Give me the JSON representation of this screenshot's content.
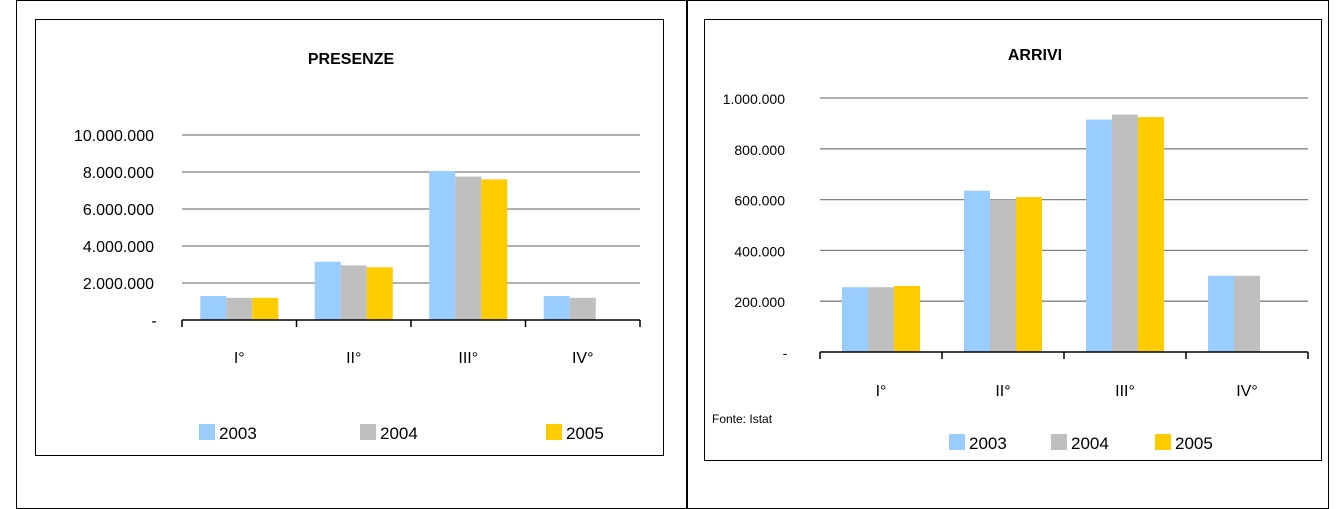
{
  "colors": {
    "y2003": "#99ccff",
    "y2004": "#bfbfbf",
    "y2005": "#ffcc00",
    "grid": "#808080"
  },
  "chart_data": [
    {
      "type": "bar",
      "title": "PRESENZE",
      "categories": [
        "I°",
        "II°",
        "III°",
        "IV°"
      ],
      "ylim": [
        0,
        10000000
      ],
      "yticks": [
        "-",
        "2.000.000",
        "4.000.000",
        "6.000.000",
        "8.000.000",
        "10.000.000"
      ],
      "grid": true,
      "legend_position": "bottom",
      "series": [
        {
          "name": "2003",
          "values": [
            1300000,
            3150000,
            8050000,
            1300000
          ]
        },
        {
          "name": "2004",
          "values": [
            1200000,
            2950000,
            7750000,
            1200000
          ]
        },
        {
          "name": "2005",
          "values": [
            1200000,
            2850000,
            7600000,
            null
          ]
        }
      ]
    },
    {
      "type": "bar",
      "title": "ARRIVI",
      "categories": [
        "I°",
        "II°",
        "III°",
        "IV°"
      ],
      "ylim": [
        0,
        1000000
      ],
      "yticks": [
        "-",
        "200.000",
        "400.000",
        "600.000",
        "800.000",
        "1.000.000"
      ],
      "grid": true,
      "legend_position": "bottom",
      "source": "Fonte: Istat",
      "series": [
        {
          "name": "2003",
          "values": [
            255000,
            635000,
            915000,
            300000
          ]
        },
        {
          "name": "2004",
          "values": [
            255000,
            600000,
            935000,
            300000
          ]
        },
        {
          "name": "2005",
          "values": [
            260000,
            610000,
            925000,
            null
          ]
        }
      ]
    }
  ]
}
